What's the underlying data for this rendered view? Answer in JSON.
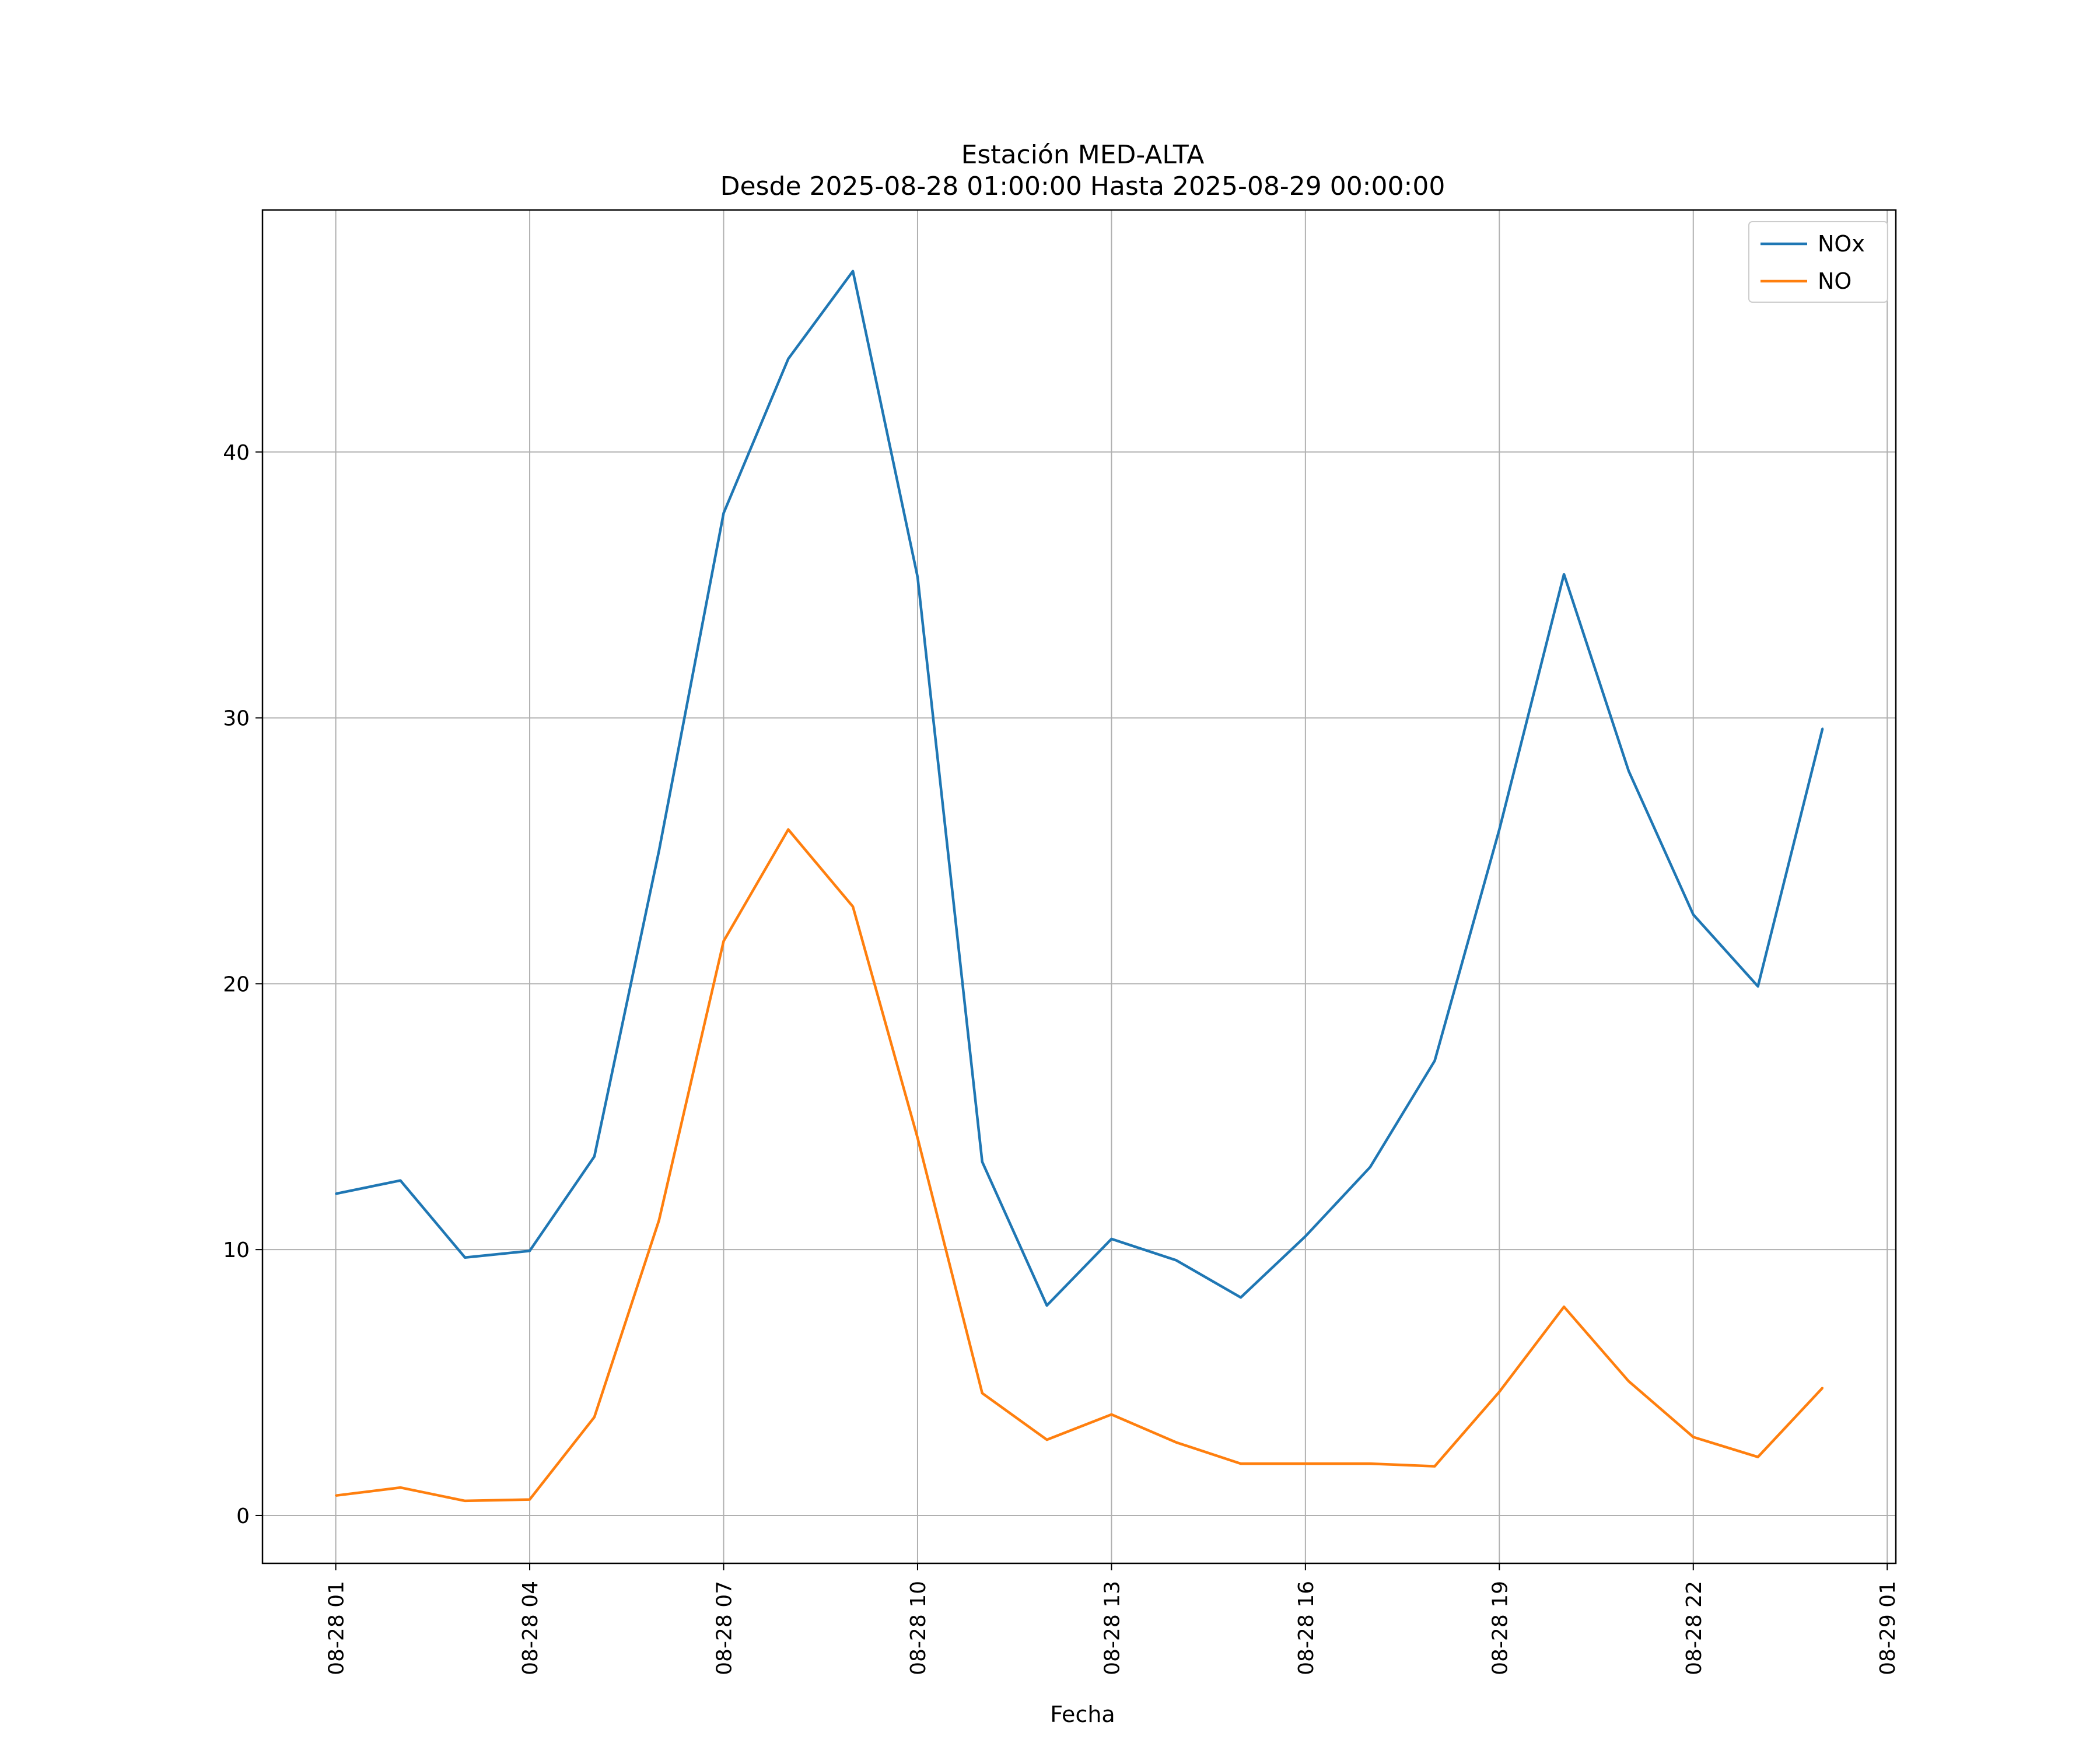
{
  "chart_data": {
    "type": "line",
    "title": "Estación MED-ALTA",
    "subtitle": "Desde 2025-08-28 01:00:00 Hasta 2025-08-29 00:00:00",
    "xlabel": "Fecha",
    "ylabel": "",
    "x": [
      "2025-08-28 01:00",
      "2025-08-28 02:00",
      "2025-08-28 03:00",
      "2025-08-28 04:00",
      "2025-08-28 05:00",
      "2025-08-28 06:00",
      "2025-08-28 07:00",
      "2025-08-28 08:00",
      "2025-08-28 09:00",
      "2025-08-28 10:00",
      "2025-08-28 11:00",
      "2025-08-28 12:00",
      "2025-08-28 13:00",
      "2025-08-28 14:00",
      "2025-08-28 15:00",
      "2025-08-28 16:00",
      "2025-08-28 17:00",
      "2025-08-28 18:00",
      "2025-08-28 19:00",
      "2025-08-28 20:00",
      "2025-08-28 21:00",
      "2025-08-28 22:00",
      "2025-08-28 23:00",
      "2025-08-29 00:00"
    ],
    "series": [
      {
        "name": "NOx",
        "color": "#1f77b4",
        "values": [
          12.1,
          12.6,
          9.7,
          9.95,
          13.5,
          25.0,
          37.7,
          43.5,
          46.8,
          35.3,
          13.3,
          7.9,
          10.4,
          9.6,
          8.2,
          10.5,
          13.1,
          17.1,
          25.8,
          35.4,
          28.0,
          22.6,
          19.9,
          29.6
        ]
      },
      {
        "name": "NO",
        "color": "#ff7f0e",
        "values": [
          0.75,
          1.05,
          0.55,
          0.6,
          3.7,
          11.1,
          21.6,
          25.8,
          22.9,
          14.2,
          4.6,
          2.85,
          3.8,
          2.75,
          1.95,
          1.95,
          1.95,
          1.85,
          4.65,
          7.85,
          5.05,
          2.95,
          2.2,
          4.8
        ]
      }
    ],
    "xticks": [
      "08-28 01",
      "08-28 04",
      "08-28 07",
      "08-28 10",
      "08-28 13",
      "08-28 16",
      "08-28 19",
      "08-28 22",
      "08-29 01"
    ],
    "xlim": [
      "2025-08-27 23:52",
      "2025-08-29 01:08"
    ],
    "yticks": [
      0,
      10,
      20,
      30,
      40
    ],
    "ylim": [
      -1.8,
      49.1
    ],
    "grid": true,
    "legend": "top-right"
  }
}
